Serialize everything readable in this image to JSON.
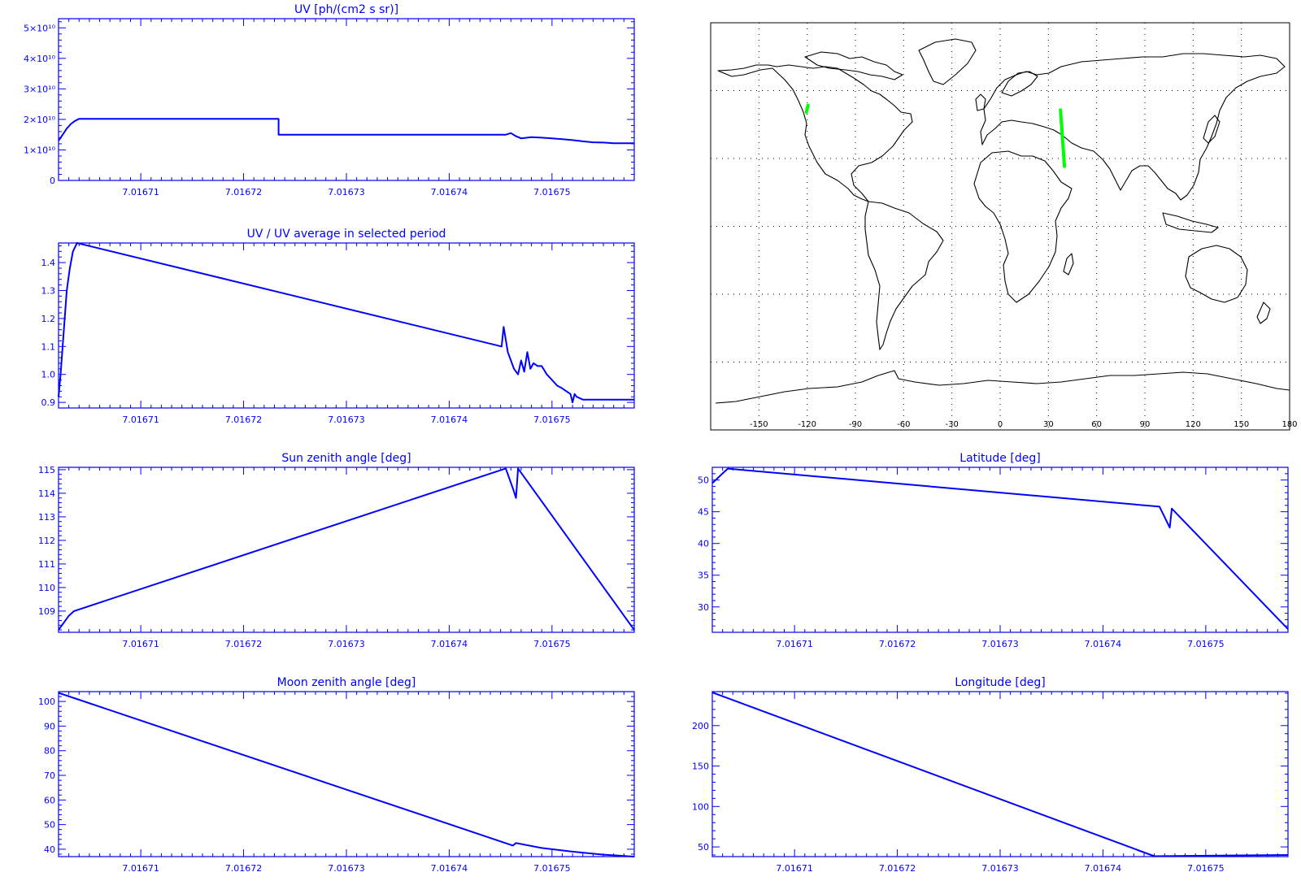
{
  "colors": {
    "axis": "#0000ff",
    "series": "#0000ff",
    "map_outline": "#000000",
    "map_track": "#00ff00",
    "background": "#ffffff"
  },
  "chart_data": [
    {
      "id": "uv",
      "type": "line",
      "title": "UV [ph/(cm2 s sr)]",
      "xlabel": "",
      "ylabel": "",
      "xlim": [
        7.016702,
        7.016758
      ],
      "ylim": [
        0,
        53000000000.0
      ],
      "xticks": [
        {
          "v": 7.01671,
          "label": "7.01671"
        },
        {
          "v": 7.01672,
          "label": "7.01672"
        },
        {
          "v": 7.01673,
          "label": "7.01673"
        },
        {
          "v": 7.01674,
          "label": "7.01674"
        },
        {
          "v": 7.01675,
          "label": "7.01675"
        }
      ],
      "yticks": [
        {
          "v": 0,
          "label": "0"
        },
        {
          "v": 10000000000.0,
          "label": "1×10¹⁰"
        },
        {
          "v": 20000000000.0,
          "label": "2×10¹⁰"
        },
        {
          "v": 30000000000.0,
          "label": "3×10¹⁰"
        },
        {
          "v": 40000000000.0,
          "label": "4×10¹⁰"
        },
        {
          "v": 50000000000.0,
          "label": "5×10¹⁰"
        }
      ],
      "series": [
        {
          "x": [
            7.016702,
            7.0167024,
            7.0167028,
            7.0167032,
            7.0167036,
            7.016704,
            7.0167234,
            7.0167234,
            7.0167455,
            7.016746,
            7.0167465,
            7.016747,
            7.016748,
            7.016749,
            7.01675,
            7.016751,
            7.016752,
            7.016753,
            7.016754,
            7.016755,
            7.016756,
            7.016757,
            7.016758
          ],
          "y": [
            13000000000.0,
            15000000000.0,
            17000000000.0,
            18500000000.0,
            19500000000.0,
            20200000000.0,
            20200000000.0,
            15000000000.0,
            15000000000.0,
            15500000000.0,
            14500000000.0,
            13800000000.0,
            14200000000.0,
            14000000000.0,
            13800000000.0,
            13500000000.0,
            13200000000.0,
            12800000000.0,
            12500000000.0,
            12400000000.0,
            12200000000.0,
            12200000000.0,
            12200000000.0
          ]
        }
      ]
    },
    {
      "id": "uv-ratio",
      "type": "line",
      "title": "UV / UV average in selected period",
      "xlabel": "",
      "ylabel": "",
      "xlim": [
        7.016702,
        7.016758
      ],
      "ylim": [
        0.88,
        1.47
      ],
      "xticks": [
        {
          "v": 7.01671,
          "label": "7.01671"
        },
        {
          "v": 7.01672,
          "label": "7.01672"
        },
        {
          "v": 7.01673,
          "label": "7.01673"
        },
        {
          "v": 7.01674,
          "label": "7.01674"
        },
        {
          "v": 7.01675,
          "label": "7.01675"
        }
      ],
      "yticks": [
        {
          "v": 0.9,
          "label": "0.9"
        },
        {
          "v": 1.0,
          "label": "1.0"
        },
        {
          "v": 1.1,
          "label": "1.1"
        },
        {
          "v": 1.2,
          "label": "1.2"
        },
        {
          "v": 1.3,
          "label": "1.3"
        },
        {
          "v": 1.4,
          "label": "1.4"
        }
      ],
      "series": [
        {
          "x": [
            7.016702,
            7.0167022,
            7.0167025,
            7.0167028,
            7.0167031,
            7.0167034,
            7.0167038,
            7.0167451,
            7.0167453,
            7.0167457,
            7.016746,
            7.0167463,
            7.0167467,
            7.016747,
            7.0167473,
            7.0167476,
            7.0167479,
            7.0167482,
            7.0167486,
            7.016749,
            7.0167495,
            7.01675,
            7.0167505,
            7.016751,
            7.0167514,
            7.0167518,
            7.016752,
            7.0167522,
            7.0167524,
            7.016753,
            7.016754,
            7.016755,
            7.016758
          ],
          "y": [
            0.92,
            1.0,
            1.15,
            1.3,
            1.38,
            1.44,
            1.47,
            1.1,
            1.17,
            1.08,
            1.05,
            1.02,
            1.0,
            1.05,
            1.01,
            1.08,
            1.02,
            1.04,
            1.03,
            1.03,
            1.0,
            0.98,
            0.96,
            0.95,
            0.94,
            0.93,
            0.9,
            0.93,
            0.92,
            0.91,
            0.91,
            0.91,
            0.91
          ]
        }
      ]
    },
    {
      "id": "sun-zenith",
      "type": "line",
      "title": "Sun zenith angle [deg]",
      "xlabel": "",
      "ylabel": "",
      "xlim": [
        7.016702,
        7.016758
      ],
      "ylim": [
        108.1,
        115.1
      ],
      "xticks": [
        {
          "v": 7.01671,
          "label": "7.01671"
        },
        {
          "v": 7.01672,
          "label": "7.01672"
        },
        {
          "v": 7.01673,
          "label": "7.01673"
        },
        {
          "v": 7.01674,
          "label": "7.01674"
        },
        {
          "v": 7.01675,
          "label": "7.01675"
        }
      ],
      "yticks": [
        {
          "v": 109,
          "label": "109"
        },
        {
          "v": 110,
          "label": "110"
        },
        {
          "v": 111,
          "label": "111"
        },
        {
          "v": 112,
          "label": "112"
        },
        {
          "v": 113,
          "label": "113"
        },
        {
          "v": 114,
          "label": "114"
        },
        {
          "v": 115,
          "label": "115"
        }
      ],
      "series": [
        {
          "x": [
            7.016702,
            7.0167025,
            7.016703,
            7.0167035,
            7.0167455,
            7.0167462,
            7.0167465,
            7.0167467,
            7.016758
          ],
          "y": [
            108.2,
            108.5,
            108.8,
            109.0,
            115.05,
            114.2,
            113.8,
            115.05,
            108.2
          ]
        }
      ]
    },
    {
      "id": "moon-zenith",
      "type": "line",
      "title": "Moon zenith angle [deg]",
      "xlabel": "",
      "ylabel": "",
      "xlim": [
        7.016702,
        7.016758
      ],
      "ylim": [
        37,
        104
      ],
      "xticks": [
        {
          "v": 7.01671,
          "label": "7.01671"
        },
        {
          "v": 7.01672,
          "label": "7.01672"
        },
        {
          "v": 7.01673,
          "label": "7.01673"
        },
        {
          "v": 7.01674,
          "label": "7.01674"
        },
        {
          "v": 7.01675,
          "label": "7.01675"
        }
      ],
      "yticks": [
        {
          "v": 40,
          "label": "40"
        },
        {
          "v": 50,
          "label": "50"
        },
        {
          "v": 60,
          "label": "60"
        },
        {
          "v": 70,
          "label": "70"
        },
        {
          "v": 80,
          "label": "80"
        },
        {
          "v": 90,
          "label": "90"
        },
        {
          "v": 100,
          "label": "100"
        }
      ],
      "series": [
        {
          "x": [
            7.016702,
            7.0167462,
            7.0167465,
            7.016749,
            7.016752,
            7.016755,
            7.016758
          ],
          "y": [
            103.5,
            41.5,
            42.5,
            40.5,
            39.0,
            37.8,
            37.0
          ]
        }
      ]
    },
    {
      "id": "latitude",
      "type": "line",
      "title": "Latitude [deg]",
      "xlabel": "",
      "ylabel": "",
      "xlim": [
        7.016702,
        7.016758
      ],
      "ylim": [
        26,
        52
      ],
      "xticks": [
        {
          "v": 7.01671,
          "label": "7.01671"
        },
        {
          "v": 7.01672,
          "label": "7.01672"
        },
        {
          "v": 7.01673,
          "label": "7.01673"
        },
        {
          "v": 7.01674,
          "label": "7.01674"
        },
        {
          "v": 7.01675,
          "label": "7.01675"
        }
      ],
      "yticks": [
        {
          "v": 30,
          "label": "30"
        },
        {
          "v": 35,
          "label": "35"
        },
        {
          "v": 40,
          "label": "40"
        },
        {
          "v": 45,
          "label": "45"
        },
        {
          "v": 50,
          "label": "50"
        }
      ],
      "series": [
        {
          "x": [
            7.016702,
            7.0167035,
            7.0167455,
            7.0167462,
            7.0167465,
            7.0167467,
            7.016758
          ],
          "y": [
            49.5,
            51.8,
            45.8,
            43.5,
            42.5,
            45.5,
            26.5
          ]
        }
      ]
    },
    {
      "id": "longitude",
      "type": "line",
      "title": "Longitude [deg]",
      "xlabel": "",
      "ylabel": "",
      "xlim": [
        7.016702,
        7.016758
      ],
      "ylim": [
        38,
        242
      ],
      "xticks": [
        {
          "v": 7.01671,
          "label": "7.01671"
        },
        {
          "v": 7.01672,
          "label": "7.01672"
        },
        {
          "v": 7.01673,
          "label": "7.01673"
        },
        {
          "v": 7.01674,
          "label": "7.01674"
        },
        {
          "v": 7.01675,
          "label": "7.01675"
        }
      ],
      "yticks": [
        {
          "v": 50,
          "label": "50"
        },
        {
          "v": 100,
          "label": "100"
        },
        {
          "v": 150,
          "label": "150"
        },
        {
          "v": 200,
          "label": "200"
        }
      ],
      "series": [
        {
          "x": [
            7.016702,
            7.016745,
            7.016758
          ],
          "y": [
            241,
            38.5,
            40
          ]
        }
      ]
    }
  ],
  "map": {
    "lon_range": [
      -180,
      180
    ],
    "lat_range": [
      -90,
      90
    ],
    "lon_ticks": [
      {
        "v": -150,
        "label": "-150"
      },
      {
        "v": -120,
        "label": "-120"
      },
      {
        "v": -90,
        "label": "-90"
      },
      {
        "v": -60,
        "label": "-60"
      },
      {
        "v": -30,
        "label": "-30"
      },
      {
        "v": 0,
        "label": "0"
      },
      {
        "v": 30,
        "label": "30"
      },
      {
        "v": 60,
        "label": "60"
      },
      {
        "v": 90,
        "label": "90"
      },
      {
        "v": 120,
        "label": "120"
      },
      {
        "v": 150,
        "label": "150"
      },
      {
        "v": 180,
        "label": "180"
      }
    ],
    "lat_grid": [
      -60,
      -30,
      0,
      30,
      60
    ],
    "tracks": [
      {
        "lon": [
          -120.5,
          -119.5
        ],
        "lat": [
          50.5,
          53.5
        ]
      },
      {
        "lon": [
          37.5,
          40.0
        ],
        "lat": [
          51.5,
          26.5
        ]
      }
    ]
  }
}
